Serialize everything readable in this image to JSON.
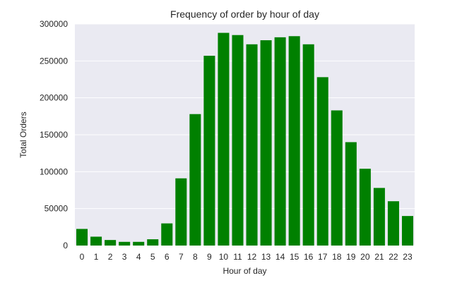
{
  "chart_data": {
    "type": "bar",
    "title": "Frequency of order by hour of day",
    "xlabel": "Hour of day",
    "ylabel": "Total Orders",
    "categories": [
      "0",
      "1",
      "2",
      "3",
      "4",
      "5",
      "6",
      "7",
      "8",
      "9",
      "10",
      "11",
      "12",
      "13",
      "14",
      "15",
      "16",
      "17",
      "18",
      "19",
      "20",
      "21",
      "22",
      "23"
    ],
    "values": [
      22500,
      12000,
      7500,
      5000,
      5000,
      8500,
      30000,
      91000,
      178000,
      257000,
      288000,
      285000,
      272500,
      278000,
      282000,
      283500,
      272500,
      228000,
      183000,
      140000,
      104000,
      78000,
      60000,
      40000
    ],
    "ylim": [
      0,
      300000
    ],
    "yticks": [
      "0",
      "50000",
      "100000",
      "150000",
      "200000",
      "250000",
      "300000"
    ],
    "grid": true,
    "bar_color": "#008000",
    "background_color": "#eaeaf2"
  }
}
